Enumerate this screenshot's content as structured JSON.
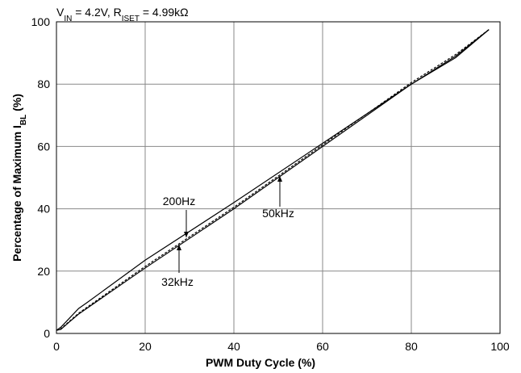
{
  "chart_data": {
    "type": "line",
    "title": [
      {
        "text": "V"
      },
      {
        "text": "IN",
        "sub": true
      },
      {
        "text": " = 4.2V, R"
      },
      {
        "text": "ISET",
        "sub": true
      },
      {
        "text": " = 4.99kΩ"
      }
    ],
    "x_label": "PWM Duty Cycle (%)",
    "y_label": [
      {
        "text": "Percentage of Maximum I"
      },
      {
        "text": "BL",
        "sub": true
      },
      {
        "text": " (%)"
      }
    ],
    "x": [
      0,
      1,
      3,
      5,
      7,
      20,
      40,
      60,
      80,
      90,
      97.5
    ],
    "series": [
      {
        "name": "200Hz",
        "color": "#000000",
        "dash": false,
        "values": [
          1,
          2,
          5,
          8,
          10,
          23.5,
          42,
          61,
          80,
          89,
          97.5
        ]
      },
      {
        "name": "50kHz",
        "color": "#000000",
        "dash": true,
        "values": [
          1,
          1.5,
          4,
          6.5,
          8.5,
          21.5,
          40.5,
          60.5,
          80.5,
          89.5,
          97.5
        ]
      },
      {
        "name": "32kHz",
        "color": "#000000",
        "dash": false,
        "values": [
          1,
          1.3,
          3.8,
          6.2,
          8.2,
          21,
          40,
          60,
          80,
          88.5,
          97.5
        ]
      }
    ],
    "xlim": [
      0,
      100
    ],
    "xticks": [
      0,
      20,
      40,
      60,
      80,
      100
    ],
    "ylim": [
      0,
      100
    ],
    "yticks": [
      0,
      20,
      40,
      60,
      80,
      100
    ],
    "grid": true
  }
}
